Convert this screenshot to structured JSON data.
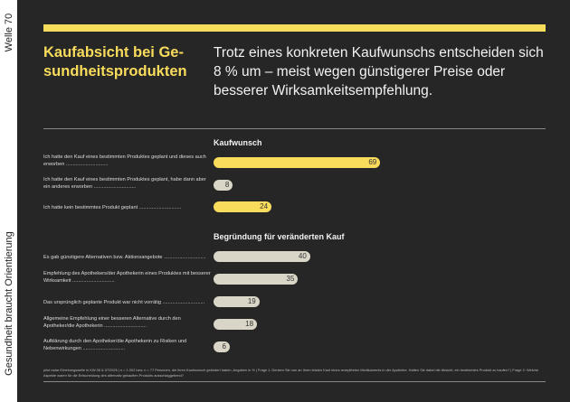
{
  "side": {
    "wave": "Welle 70",
    "slogan": "Gesundheit braucht Orientierung"
  },
  "title": "Kaufabsicht bei Ge-sundheitsprodukten",
  "subtitle": "Trotz eines konkreten Kaufwunschs entscheiden sich 8 % um – meist wegen günstigerer Preise oder besserer Wirksamkeitsempfehlung.",
  "colors": {
    "background": "#262626",
    "accent": "#f9dc5c",
    "secondary": "#d9d6c8"
  },
  "chart_data": [
    {
      "type": "bar",
      "orientation": "horizontal",
      "title": "Kaufwunsch",
      "categories": [
        "Ich hatte den Kauf eines bestimmten Produktes geplant und dieses auch erworben",
        "Ich hatte den Kauf eines bestimmten Produktes geplant, habe dann aber ein anderes erworben",
        "Ich hatte kein bestimmtes Produkt geplant"
      ],
      "values": [
        69,
        8,
        24
      ],
      "colors": [
        "#f9dc5c",
        "#d9d6c8",
        "#f9dc5c"
      ]
    },
    {
      "type": "bar",
      "orientation": "horizontal",
      "title": "Begründung für veränderten Kauf",
      "categories": [
        "Es gab günstigere Alternativen bzw. Aktionsangebote",
        "Empfehlung des Apothekers/der Apothekerin eines Produktes mit besserer Wirksamkeit",
        "Das ursprünglich geplante Produkt war nicht vorrätig",
        "Allgemeine Empfehlung einer besseren Alternative durch den Apotheker/die Apothekerin",
        "Aufklärung durch den Apotheker/die Apothekerin zu Risiken und Nebenwirkungen"
      ],
      "values": [
        40,
        35,
        19,
        18,
        6
      ],
      "colors": [
        "#d9d6c8",
        "#d9d6c8",
        "#d9d6c8",
        "#d9d6c8",
        "#d9d6c8"
      ]
    }
  ],
  "footnote": "pilot radar Erhebungswelle in KW 06 & 07/2026 | n = 1.002 bzw. n = 77 Personen, die ihren Kaufwunsch geändert haben, Angaben in % | Frage 1: Denken Sie nun an Ihren letzten Kauf eines rezeptfreien Medikaments in der Apotheke. Hatten Sie dabei die Absicht, ein bestimmtes Produkt zu kaufen? | Frage 2: Welche Aspekte waren für die Entscheidung des alternativ gekauften Produkts ausschlaggebend?"
}
